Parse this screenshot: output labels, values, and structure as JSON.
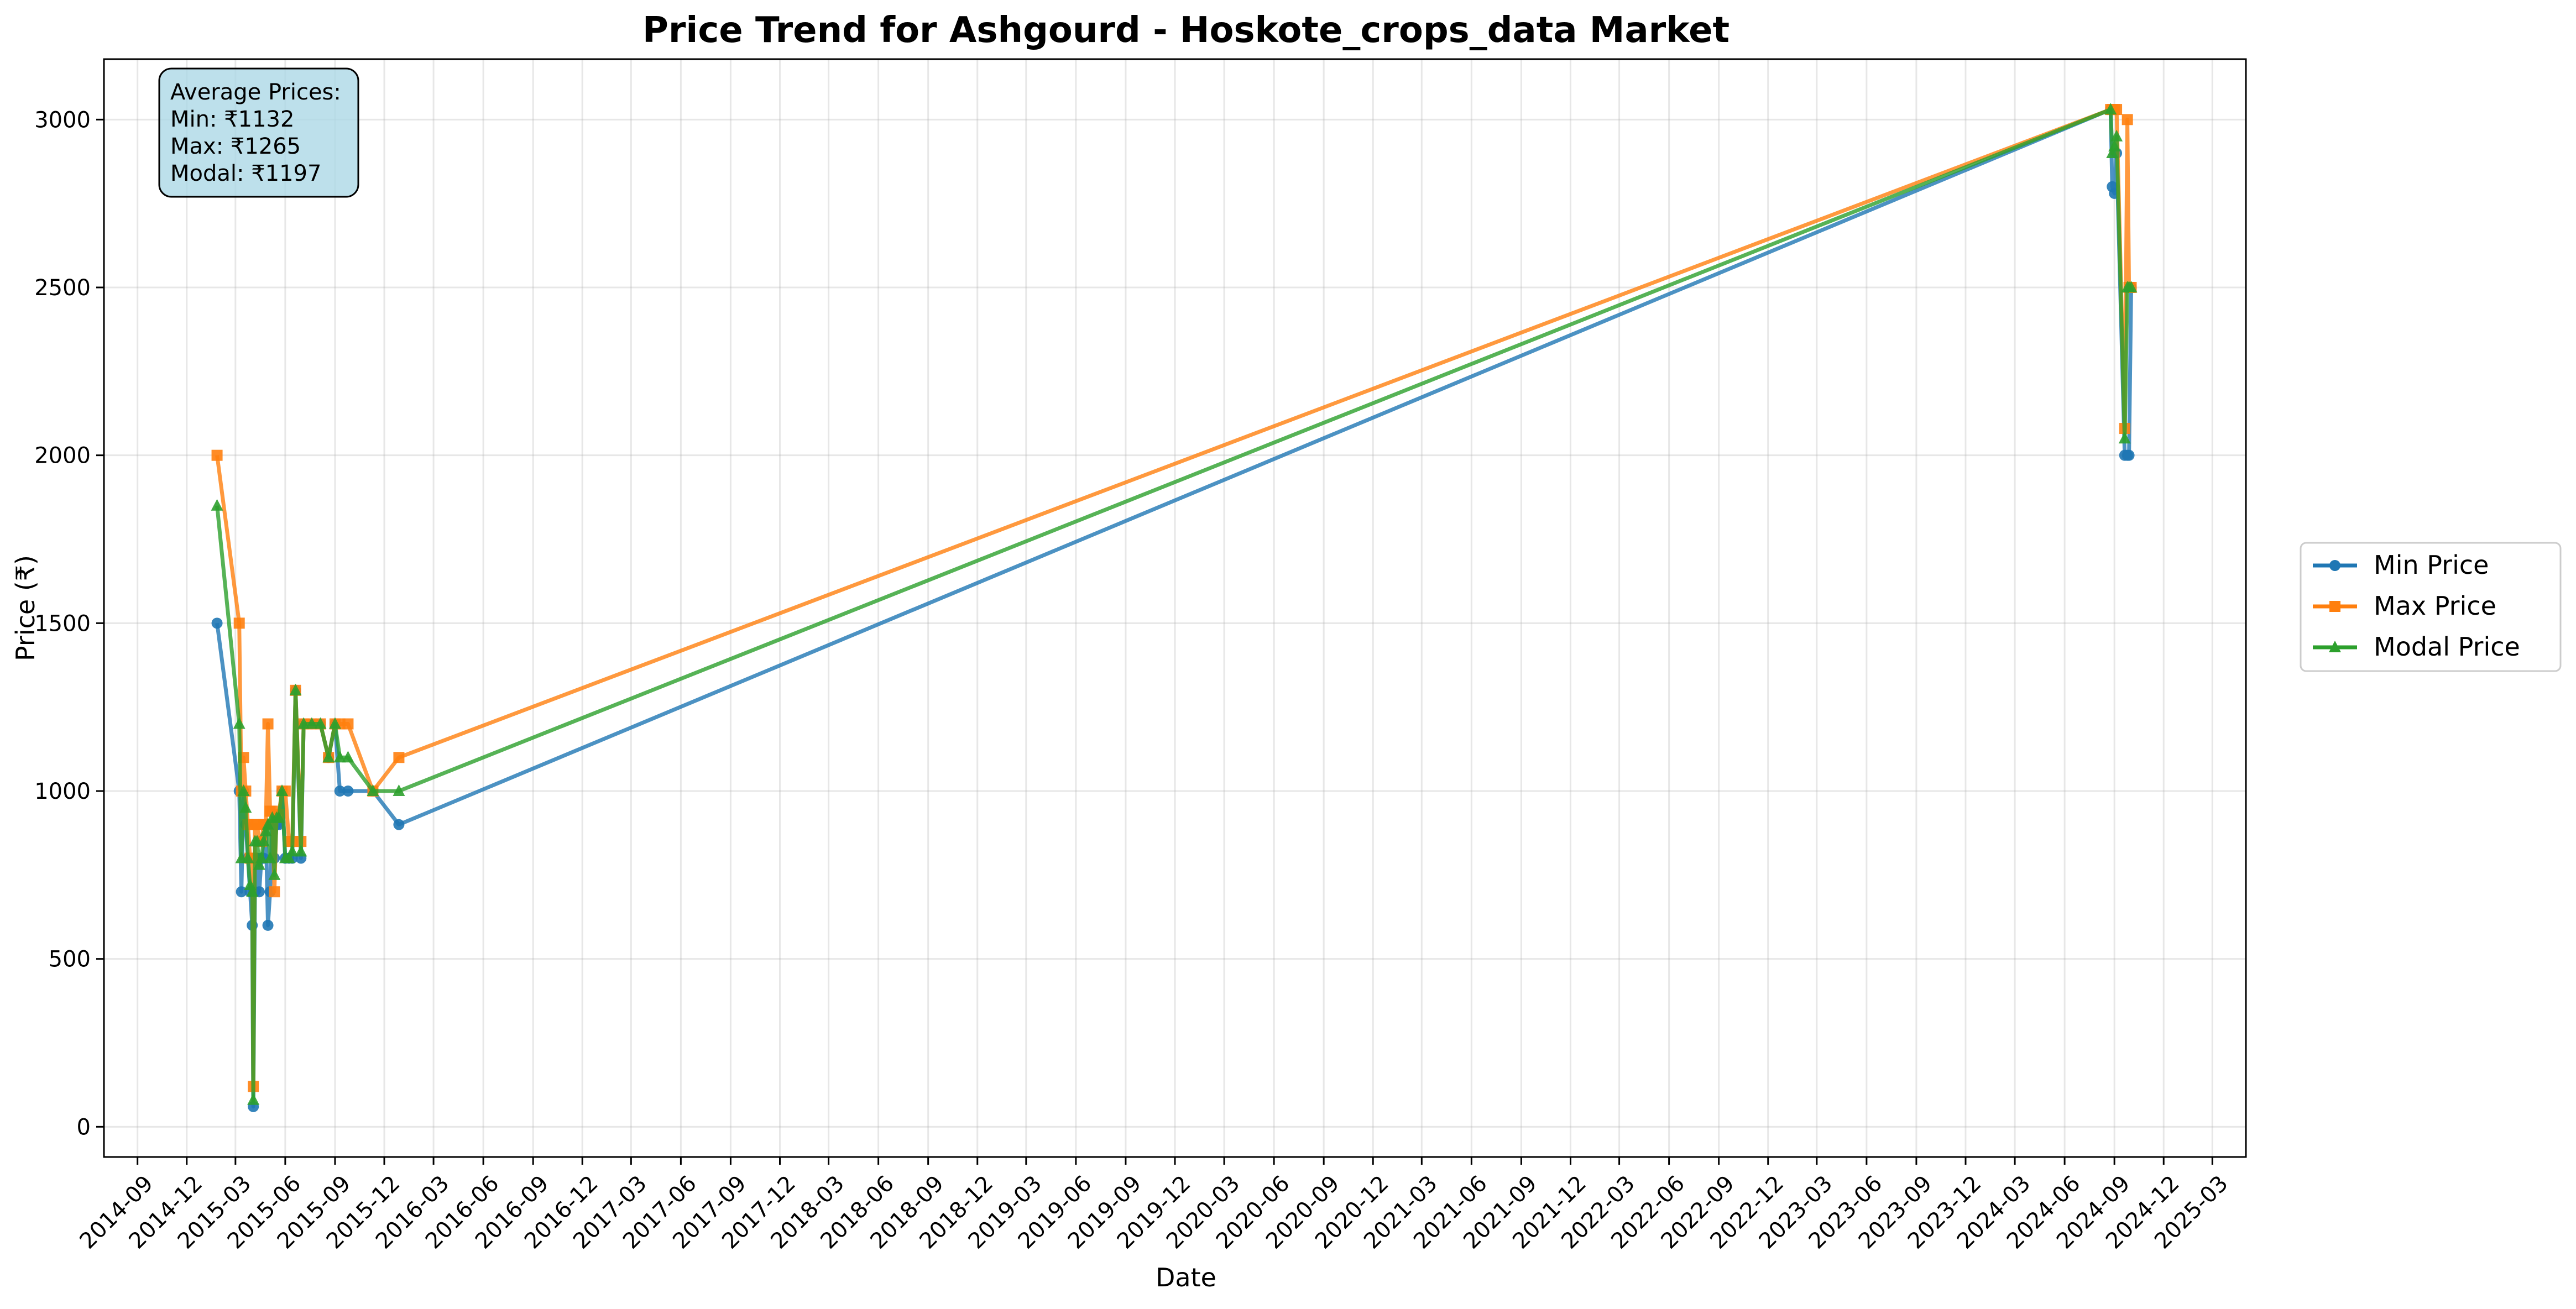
{
  "chart_data": {
    "type": "line",
    "title": "Price Trend for Ashgourd - Hoskote_crops_data Market",
    "xlabel": "Date",
    "ylabel": "Price (₹)",
    "x_axis": {
      "start": "2014-09",
      "end": "2025-03",
      "tick_labels": [
        "2014-09",
        "2014-12",
        "2015-03",
        "2015-06",
        "2015-09",
        "2015-12",
        "2016-03",
        "2016-06",
        "2016-09",
        "2016-12",
        "2017-03",
        "2017-06",
        "2017-09",
        "2017-12",
        "2018-03",
        "2018-06",
        "2018-09",
        "2018-12",
        "2019-03",
        "2019-06",
        "2019-09",
        "2019-12",
        "2020-03",
        "2020-06",
        "2020-09",
        "2020-12",
        "2021-03",
        "2021-06",
        "2021-09",
        "2021-12",
        "2022-03",
        "2022-06",
        "2022-09",
        "2022-12",
        "2023-03",
        "2023-06",
        "2023-09",
        "2023-12",
        "2024-03",
        "2024-06",
        "2024-09",
        "2024-12",
        "2025-03"
      ]
    },
    "y_axis": {
      "ylim": [
        -90,
        3180
      ],
      "ticks": [
        0,
        500,
        1000,
        1500,
        2000,
        2500,
        3000
      ]
    },
    "grid": true,
    "legend_placement": "right",
    "annotation": {
      "lines": [
        "Average Prices:",
        "Min: ₹1132",
        "Max: ₹1265",
        "Modal: ₹1197"
      ],
      "background": "#add8e6"
    },
    "series": [
      {
        "name": "Min Price",
        "color": "#1f77b4",
        "marker": "circle",
        "points": [
          [
            "2015-01-26",
            1500
          ],
          [
            "2015-03-08",
            1000
          ],
          [
            "2015-03-12",
            700
          ],
          [
            "2015-03-16",
            1000
          ],
          [
            "2015-03-20",
            900
          ],
          [
            "2015-03-24",
            800
          ],
          [
            "2015-03-28",
            700
          ],
          [
            "2015-04-01",
            600
          ],
          [
            "2015-04-03",
            60
          ],
          [
            "2015-04-06",
            700
          ],
          [
            "2015-04-10",
            800
          ],
          [
            "2015-04-14",
            700
          ],
          [
            "2015-04-18",
            800
          ],
          [
            "2015-04-22",
            800
          ],
          [
            "2015-04-26",
            900
          ],
          [
            "2015-04-30",
            600
          ],
          [
            "2015-05-04",
            700
          ],
          [
            "2015-05-08",
            900
          ],
          [
            "2015-05-12",
            800
          ],
          [
            "2015-05-16",
            900
          ],
          [
            "2015-05-20",
            900
          ],
          [
            "2015-05-26",
            1000
          ],
          [
            "2015-06-01",
            800
          ],
          [
            "2015-06-08",
            800
          ],
          [
            "2015-06-14",
            800
          ],
          [
            "2015-06-20",
            1300
          ],
          [
            "2015-06-30",
            800
          ],
          [
            "2015-07-05",
            1200
          ],
          [
            "2015-07-20",
            1200
          ],
          [
            "2015-08-05",
            1200
          ],
          [
            "2015-08-20",
            1100
          ],
          [
            "2015-09-01",
            1200
          ],
          [
            "2015-09-10",
            1000
          ],
          [
            "2015-09-25",
            1000
          ],
          [
            "2015-11-10",
            1000
          ],
          [
            "2015-12-28",
            900
          ],
          [
            "2024-08-25",
            3030
          ],
          [
            "2024-08-28",
            2800
          ],
          [
            "2024-09-01",
            2780
          ],
          [
            "2024-09-05",
            2900
          ],
          [
            "2024-09-20",
            2000
          ],
          [
            "2024-09-25",
            2000
          ],
          [
            "2024-09-28",
            2000
          ],
          [
            "2024-10-02",
            2500
          ]
        ]
      },
      {
        "name": "Max Price",
        "color": "#ff7f0e",
        "marker": "square",
        "points": [
          [
            "2015-01-26",
            2000
          ],
          [
            "2015-03-08",
            1500
          ],
          [
            "2015-03-12",
            1000
          ],
          [
            "2015-03-16",
            1100
          ],
          [
            "2015-03-20",
            1000
          ],
          [
            "2015-03-24",
            900
          ],
          [
            "2015-03-28",
            800
          ],
          [
            "2015-04-01",
            800
          ],
          [
            "2015-04-03",
            120
          ],
          [
            "2015-04-06",
            900
          ],
          [
            "2015-04-10",
            900
          ],
          [
            "2015-04-14",
            850
          ],
          [
            "2015-04-18",
            850
          ],
          [
            "2015-04-22",
            900
          ],
          [
            "2015-04-26",
            900
          ],
          [
            "2015-04-30",
            1200
          ],
          [
            "2015-05-04",
            940
          ],
          [
            "2015-05-08",
            940
          ],
          [
            "2015-05-12",
            700
          ],
          [
            "2015-05-16",
            930
          ],
          [
            "2015-05-20",
            930
          ],
          [
            "2015-05-26",
            1000
          ],
          [
            "2015-06-01",
            1000
          ],
          [
            "2015-06-08",
            850
          ],
          [
            "2015-06-14",
            850
          ],
          [
            "2015-06-20",
            1300
          ],
          [
            "2015-06-30",
            850
          ],
          [
            "2015-07-05",
            1200
          ],
          [
            "2015-07-20",
            1200
          ],
          [
            "2015-08-05",
            1200
          ],
          [
            "2015-08-20",
            1100
          ],
          [
            "2015-09-01",
            1200
          ],
          [
            "2015-09-10",
            1200
          ],
          [
            "2015-09-25",
            1200
          ],
          [
            "2015-11-10",
            1000
          ],
          [
            "2015-12-28",
            1100
          ],
          [
            "2024-08-25",
            3030
          ],
          [
            "2024-08-28",
            3030
          ],
          [
            "2024-09-01",
            3030
          ],
          [
            "2024-09-05",
            3030
          ],
          [
            "2024-09-20",
            2080
          ],
          [
            "2024-09-25",
            3000
          ],
          [
            "2024-09-28",
            2500
          ],
          [
            "2024-10-02",
            2500
          ]
        ]
      },
      {
        "name": "Modal Price",
        "color": "#2ca02c",
        "marker": "triangle",
        "points": [
          [
            "2015-01-26",
            1850
          ],
          [
            "2015-03-08",
            1200
          ],
          [
            "2015-03-12",
            800
          ],
          [
            "2015-03-16",
            1000
          ],
          [
            "2015-03-20",
            950
          ],
          [
            "2015-03-24",
            800
          ],
          [
            "2015-03-28",
            720
          ],
          [
            "2015-04-01",
            700
          ],
          [
            "2015-04-03",
            80
          ],
          [
            "2015-04-06",
            850
          ],
          [
            "2015-04-10",
            850
          ],
          [
            "2015-04-14",
            780
          ],
          [
            "2015-04-18",
            800
          ],
          [
            "2015-04-22",
            850
          ],
          [
            "2015-04-26",
            880
          ],
          [
            "2015-04-30",
            900
          ],
          [
            "2015-05-04",
            800
          ],
          [
            "2015-05-08",
            920
          ],
          [
            "2015-05-12",
            750
          ],
          [
            "2015-05-16",
            920
          ],
          [
            "2015-05-20",
            920
          ],
          [
            "2015-05-26",
            1000
          ],
          [
            "2015-06-01",
            800
          ],
          [
            "2015-06-08",
            800
          ],
          [
            "2015-06-14",
            820
          ],
          [
            "2015-06-20",
            1300
          ],
          [
            "2015-06-30",
            820
          ],
          [
            "2015-07-05",
            1200
          ],
          [
            "2015-07-20",
            1200
          ],
          [
            "2015-08-05",
            1200
          ],
          [
            "2015-08-20",
            1100
          ],
          [
            "2015-09-01",
            1200
          ],
          [
            "2015-09-10",
            1100
          ],
          [
            "2015-09-25",
            1100
          ],
          [
            "2015-11-10",
            1000
          ],
          [
            "2015-12-28",
            1000
          ],
          [
            "2024-08-25",
            3030
          ],
          [
            "2024-08-28",
            2900
          ],
          [
            "2024-09-01",
            2920
          ],
          [
            "2024-09-05",
            2950
          ],
          [
            "2024-09-20",
            2050
          ],
          [
            "2024-09-25",
            2500
          ],
          [
            "2024-09-28",
            2500
          ],
          [
            "2024-10-02",
            2500
          ]
        ]
      }
    ]
  }
}
